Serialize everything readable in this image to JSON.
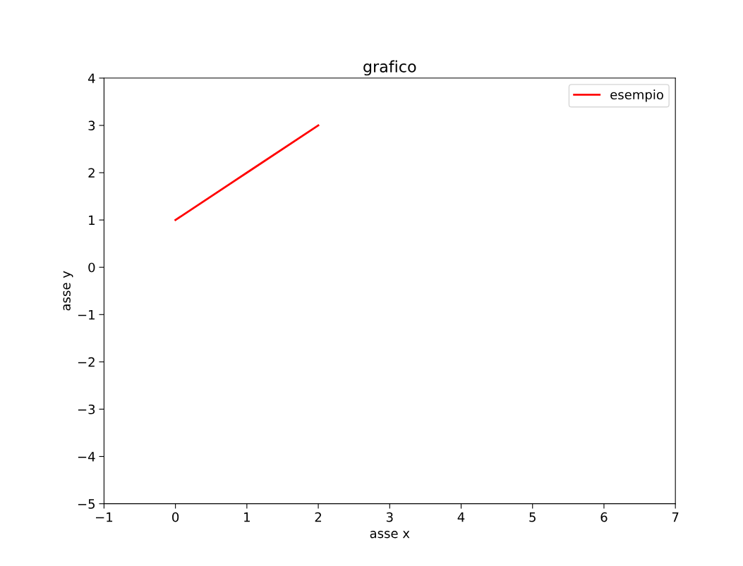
{
  "chart_data": {
    "type": "line",
    "title": "grafico",
    "xlabel": "asse x",
    "ylabel": "asse y",
    "x": [
      0,
      1,
      2
    ],
    "series": [
      {
        "name": "esempio",
        "color": "#ff0000",
        "values": [
          1,
          2,
          3
        ]
      }
    ],
    "xlim": [
      -1,
      7
    ],
    "ylim": [
      -5,
      4
    ],
    "xticks": [
      {
        "value": -1,
        "label": "−1"
      },
      0,
      1,
      2,
      3,
      4,
      5,
      6,
      7
    ],
    "yticks": [
      {
        "value": -5,
        "label": "−5"
      },
      {
        "value": -4,
        "label": "−4"
      },
      {
        "value": -3,
        "label": "−3"
      },
      {
        "value": -2,
        "label": "−2"
      },
      {
        "value": -1,
        "label": "−1"
      },
      0,
      1,
      2,
      3,
      4
    ],
    "legend": "top right",
    "grid": false,
    "marker": "none",
    "line_style": "solid"
  }
}
